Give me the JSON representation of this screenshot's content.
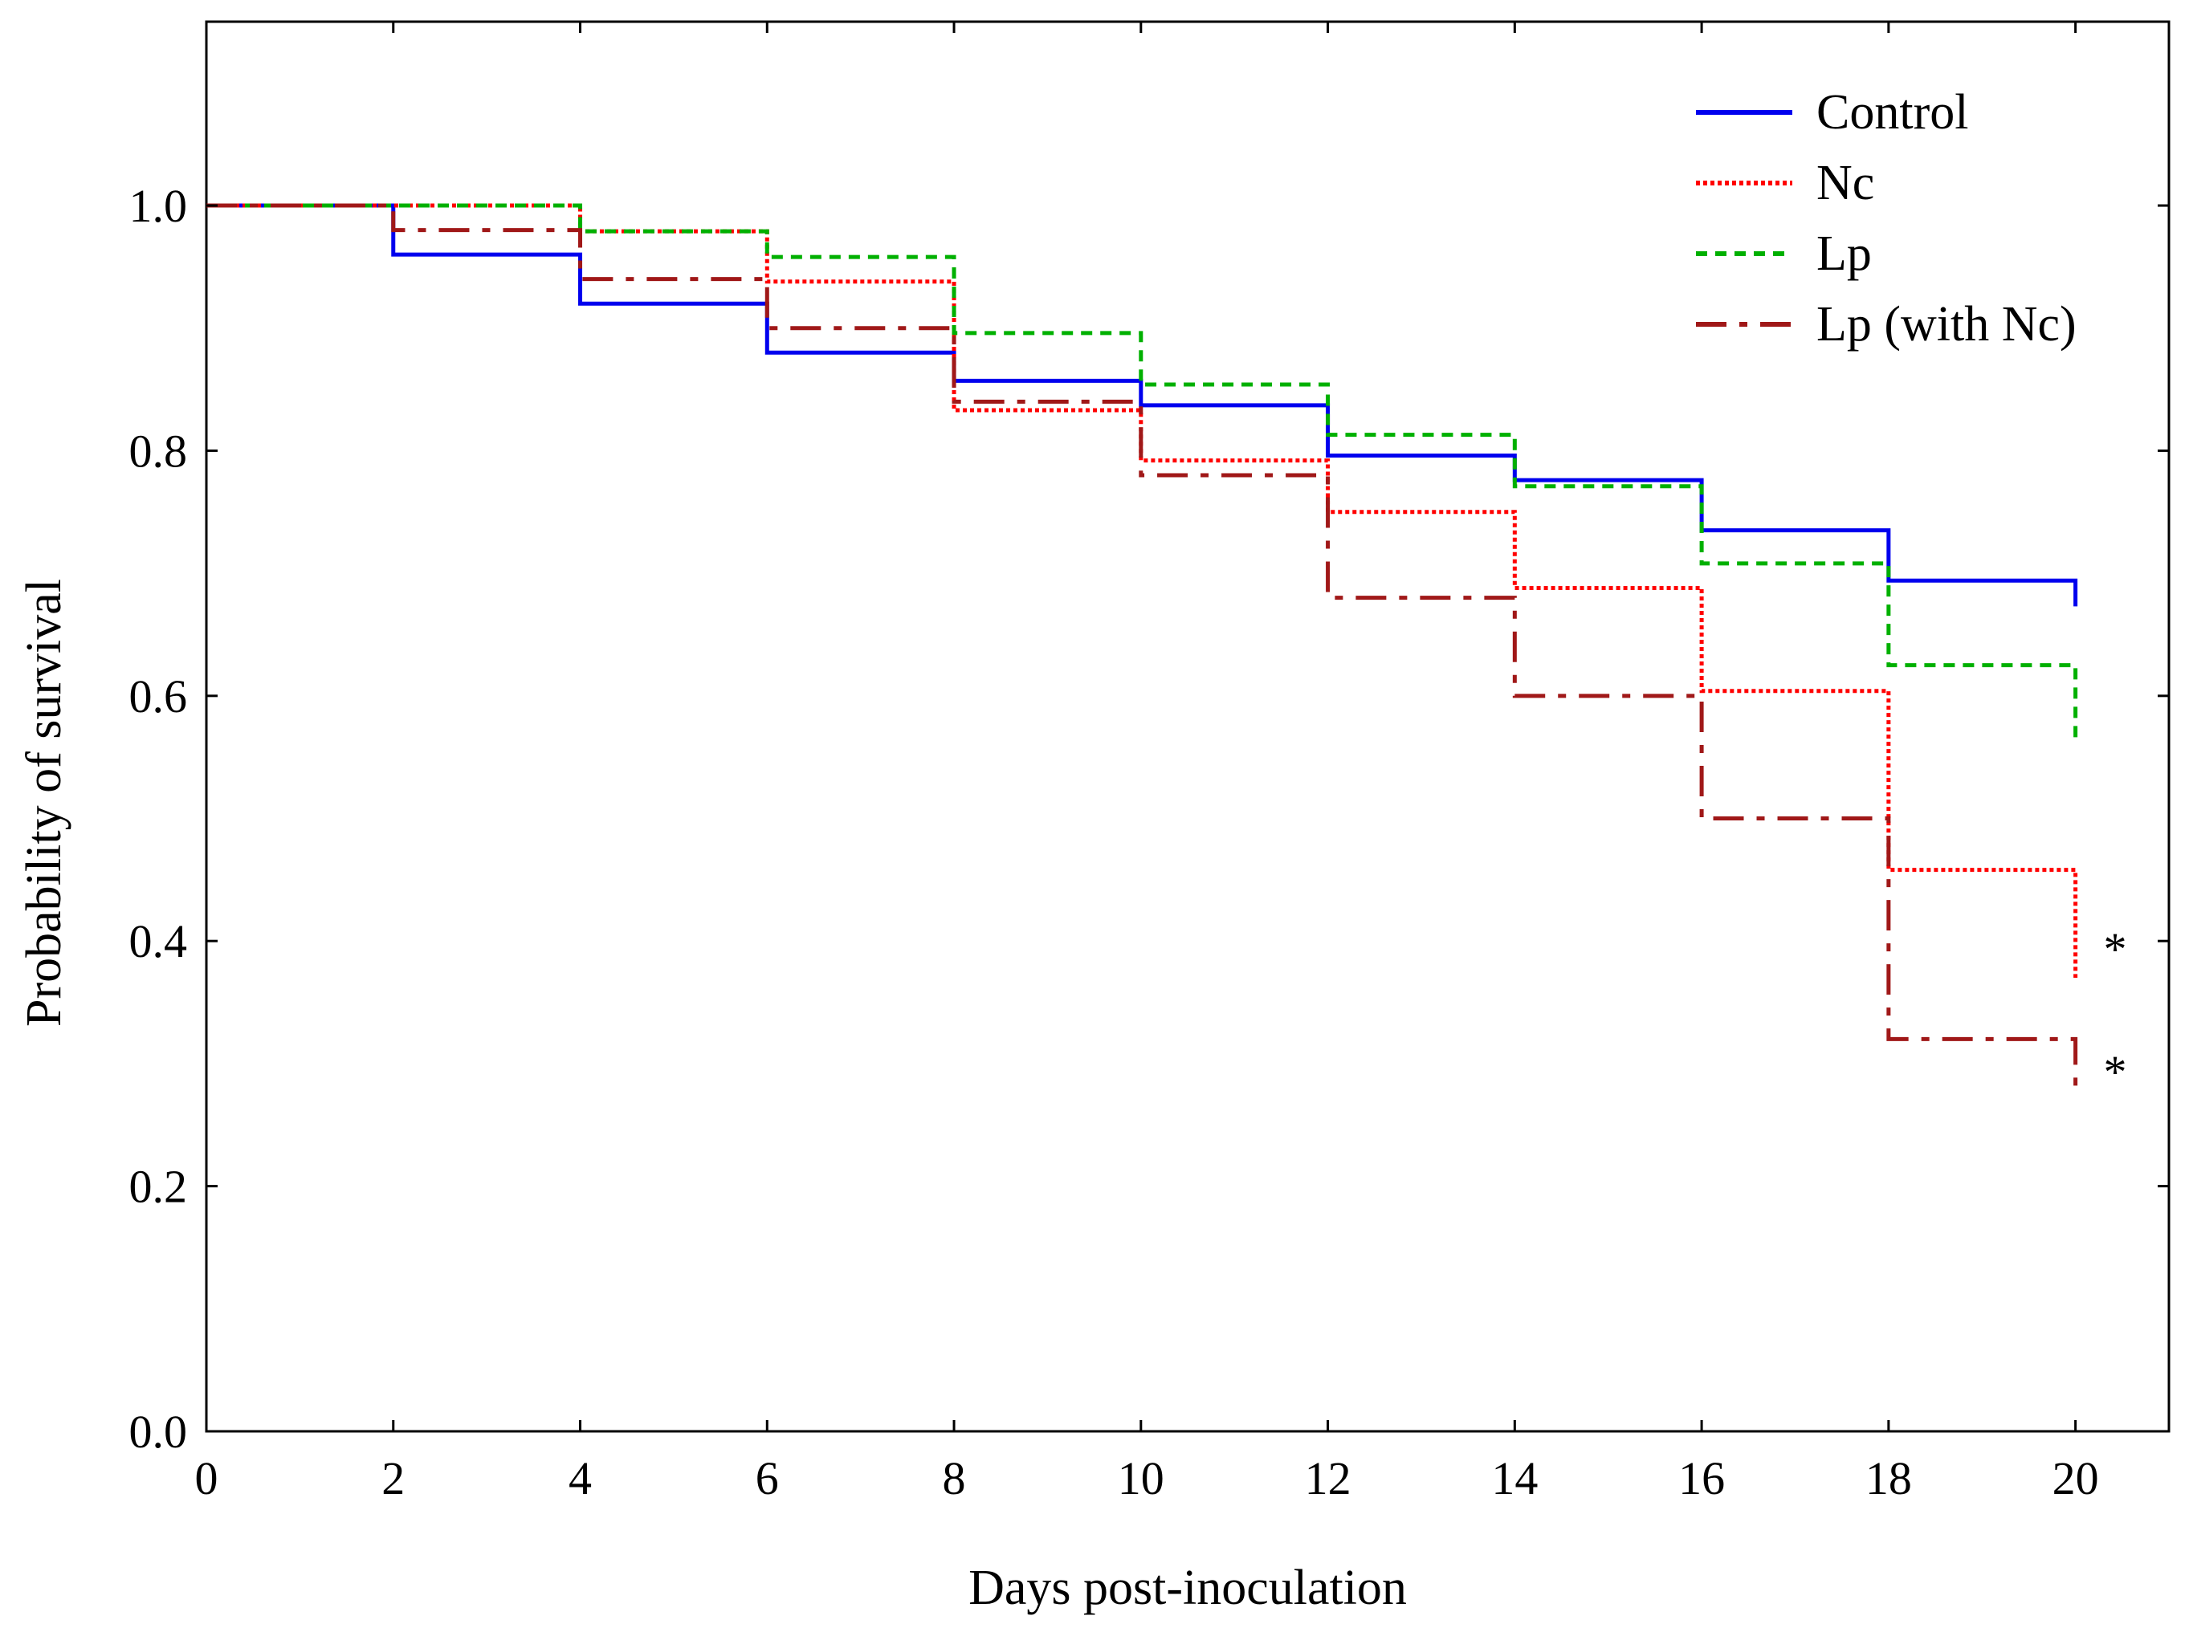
{
  "chart_data": {
    "type": "line",
    "step": true,
    "title": "",
    "xlabel": "Days post-inoculation",
    "ylabel": "Probability of survival",
    "xlim": [
      0,
      21
    ],
    "ylim": [
      0,
      1.15
    ],
    "xticks": [
      0,
      2,
      4,
      6,
      8,
      10,
      12,
      14,
      16,
      18,
      20
    ],
    "yticks": [
      0.0,
      0.2,
      0.4,
      0.6,
      0.8,
      1.0
    ],
    "ytick_labels": [
      "0.0",
      "0.2",
      "0.4",
      "0.6",
      "0.8",
      "1.0"
    ],
    "legend_position": "top-right",
    "series": [
      {
        "name": "Control",
        "color": "#0000ee",
        "style": "solid",
        "x": [
          0,
          2,
          4,
          6,
          8,
          10,
          12,
          14,
          16,
          18,
          20
        ],
        "y": [
          1.0,
          0.96,
          0.92,
          0.88,
          0.857,
          0.837,
          0.796,
          0.776,
          0.735,
          0.694,
          0.694
        ],
        "end_drop": 0.673
      },
      {
        "name": "Nc",
        "color": "#ff0000",
        "style": "dotted",
        "x": [
          0,
          2,
          4,
          6,
          8,
          10,
          12,
          14,
          16,
          18,
          20
        ],
        "y": [
          1.0,
          1.0,
          0.979,
          0.938,
          0.833,
          0.792,
          0.75,
          0.688,
          0.604,
          0.458,
          0.458
        ],
        "end_drop": 0.37
      },
      {
        "name": "Lp",
        "color": "#00b000",
        "style": "dashed",
        "x": [
          0,
          2,
          4,
          6,
          8,
          10,
          12,
          14,
          16,
          18,
          20
        ],
        "y": [
          1.0,
          1.0,
          0.979,
          0.958,
          0.896,
          0.854,
          0.813,
          0.771,
          0.708,
          0.625,
          0.625
        ],
        "end_drop": 0.56
      },
      {
        "name": "Lp (with Nc)",
        "color": "#a01818",
        "style": "dashdot",
        "x": [
          0,
          2,
          4,
          6,
          8,
          10,
          12,
          14,
          16,
          18,
          20
        ],
        "y": [
          1.0,
          0.98,
          0.94,
          0.9,
          0.84,
          0.78,
          0.68,
          0.6,
          0.5,
          0.32,
          0.32
        ],
        "end_drop": 0.28
      }
    ],
    "annotations": [
      {
        "text": "*",
        "x": 20.3,
        "y": 0.4
      },
      {
        "text": "*",
        "x": 20.3,
        "y": 0.3
      }
    ]
  }
}
